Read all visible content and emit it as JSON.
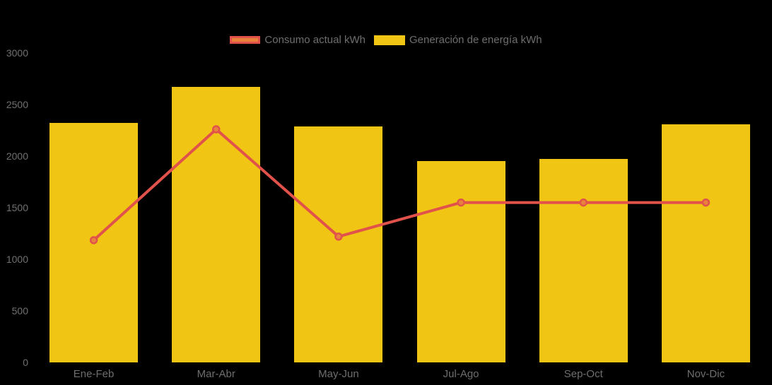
{
  "chart_data": {
    "type": "combo",
    "title": "",
    "xlabel": "",
    "ylabel": "",
    "categories": [
      "Ene-Feb",
      "Mar-Abr",
      "May-Jun",
      "Jul-Ago",
      "Sep-Oct",
      "Nov-Dic"
    ],
    "series": [
      {
        "name": "Consumo actual kWh",
        "type": "line",
        "color": "#E0524A",
        "marker_fill": "#E8823D",
        "values": [
          1185,
          2260,
          1220,
          1550,
          1550,
          1550
        ]
      },
      {
        "name": "Generación de energía kWh",
        "type": "bar",
        "color": "#F0C514",
        "values": [
          2320,
          2670,
          2290,
          1950,
          1970,
          2310
        ]
      }
    ],
    "ylim": [
      0,
      3000
    ],
    "y_ticks": [
      "0",
      "500",
      "1000",
      "1500",
      "2000",
      "2500",
      "3000"
    ],
    "grid": false,
    "legend_position": "top-center",
    "colors": {
      "background": "#000000",
      "axis_text": "#6E6E6E",
      "bar": "#F0C514",
      "line": "#E0524A",
      "marker_fill": "#E8823D",
      "legend_line_swatch_fill": "#E8813B"
    }
  }
}
